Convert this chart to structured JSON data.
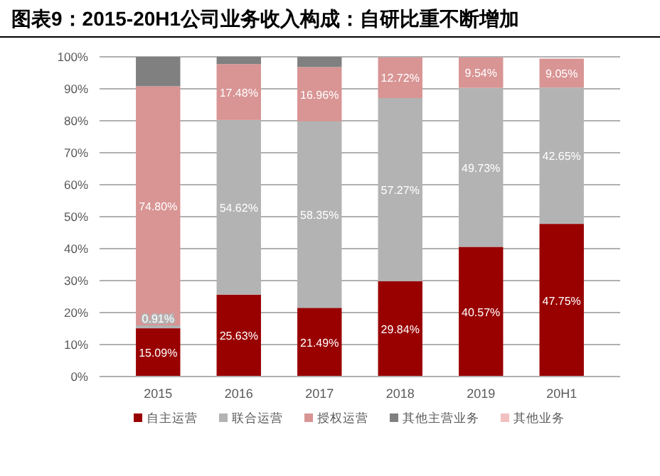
{
  "chart_data": {
    "type": "bar",
    "stacked": true,
    "title": "图表9：2015-20H1公司业务收入构成：自研比重不断增加",
    "categories": [
      "2015",
      "2016",
      "2017",
      "2018",
      "2019",
      "20H1"
    ],
    "series": [
      {
        "name": "自主运营",
        "color": "#990000",
        "values": [
          15.09,
          25.63,
          21.49,
          29.84,
          40.57,
          47.75
        ],
        "value_labels": [
          "15.09%",
          "25.63%",
          "21.49%",
          "29.84%",
          "40.57%",
          "47.75%"
        ]
      },
      {
        "name": "联合运营",
        "color": "#b3b3b3",
        "values": [
          0.91,
          54.62,
          58.35,
          57.27,
          49.73,
          42.65
        ],
        "value_labels": [
          "0.91%",
          "54.62%",
          "58.35%",
          "57.27%",
          "49.73%",
          "42.65%"
        ]
      },
      {
        "name": "授权运营",
        "color": "#d99494",
        "values": [
          74.8,
          17.48,
          16.96,
          12.72,
          9.54,
          9.05
        ],
        "value_labels": [
          "74.80%",
          "17.48%",
          "16.96%",
          "12.72%",
          "9.54%",
          "9.05%"
        ]
      },
      {
        "name": "其他主营业务",
        "color": "#808080",
        "values": [
          9.2,
          2.3,
          3.2,
          null,
          null,
          null
        ]
      },
      {
        "name": "其他业务",
        "color": "#f2c0c0",
        "values": [
          null,
          null,
          null,
          null,
          null,
          null
        ]
      }
    ],
    "ylim": [
      0,
      100
    ],
    "yticks": [
      {
        "value": 0,
        "label": "0%"
      },
      {
        "value": 10,
        "label": "10%"
      },
      {
        "value": 20,
        "label": "20%"
      },
      {
        "value": 30,
        "label": "30%"
      },
      {
        "value": 40,
        "label": "40%"
      },
      {
        "value": 50,
        "label": "50%"
      },
      {
        "value": 60,
        "label": "60%"
      },
      {
        "value": 70,
        "label": "70%"
      },
      {
        "value": 80,
        "label": "80%"
      },
      {
        "value": 90,
        "label": "90%"
      },
      {
        "value": 100,
        "label": "100%"
      }
    ],
    "grid": "y",
    "legend": "bottom"
  }
}
